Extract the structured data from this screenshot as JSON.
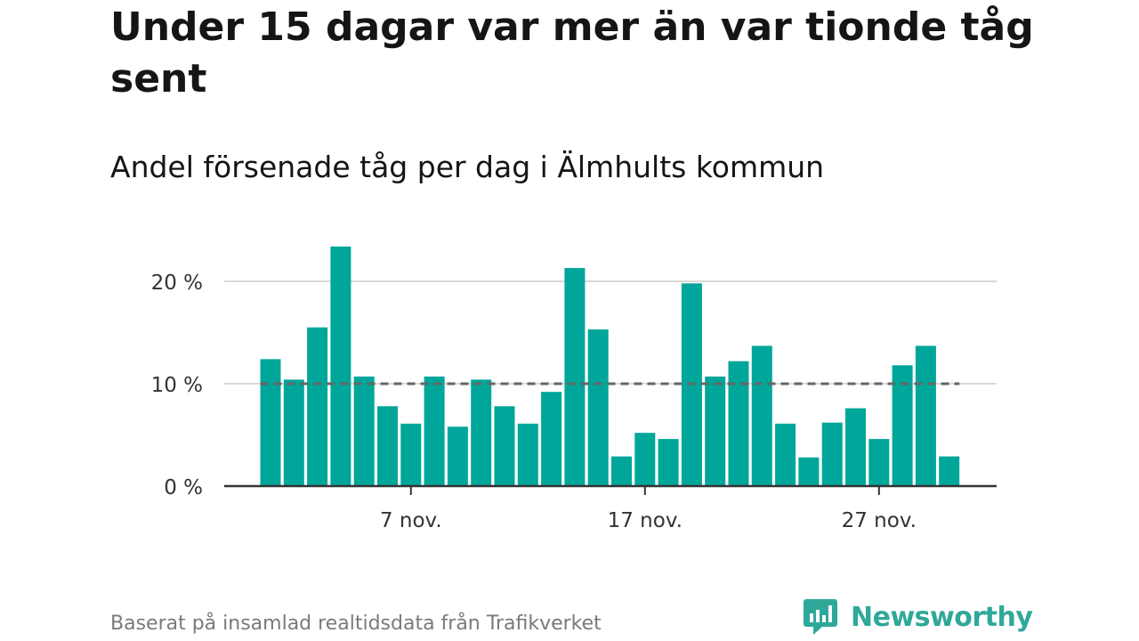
{
  "title": "Under 15 dagar var mer än var tionde tåg sent",
  "subtitle": "Andel försenade tåg per dag i Älmhults kommun",
  "source": "Baserat på insamlad realtidsdata från Trafikverket",
  "brand": {
    "name": "Newsworthy",
    "icon": "newsworthy-logo-icon",
    "color": "#2fa89a"
  },
  "chart_data": {
    "type": "bar",
    "x": [
      "2023-11-01",
      "2023-11-02",
      "2023-11-03",
      "2023-11-04",
      "2023-11-05",
      "2023-11-06",
      "2023-11-07",
      "2023-11-08",
      "2023-11-09",
      "2023-11-10",
      "2023-11-11",
      "2023-11-12",
      "2023-11-13",
      "2023-11-14",
      "2023-11-15",
      "2023-11-16",
      "2023-11-17",
      "2023-11-18",
      "2023-11-19",
      "2023-11-20",
      "2023-11-21",
      "2023-11-22",
      "2023-11-23",
      "2023-11-24",
      "2023-11-25",
      "2023-11-26",
      "2023-11-27",
      "2023-11-28",
      "2023-11-29",
      "2023-11-30"
    ],
    "values": [
      12.4,
      10.4,
      15.5,
      23.4,
      10.7,
      7.8,
      6.1,
      10.7,
      5.8,
      10.4,
      7.8,
      6.1,
      9.2,
      21.3,
      15.3,
      2.9,
      5.2,
      4.6,
      19.8,
      10.7,
      12.2,
      13.7,
      6.1,
      2.8,
      6.2,
      7.6,
      4.6,
      11.8,
      13.7,
      2.9
    ],
    "reference_line": 10,
    "y_ticks": [
      0,
      10,
      20
    ],
    "y_tick_labels": [
      "0 %",
      "10 %",
      "20 %"
    ],
    "x_ticks": [
      "2023-11-07",
      "2023-11-17",
      "2023-11-27"
    ],
    "x_tick_labels": [
      "7 nov.",
      "17 nov.",
      "27 nov."
    ],
    "ylim": [
      0,
      24
    ],
    "bar_color": "#00a69a",
    "reference_line_color": "#666666",
    "grid": true,
    "xlabel": "",
    "ylabel": ""
  }
}
